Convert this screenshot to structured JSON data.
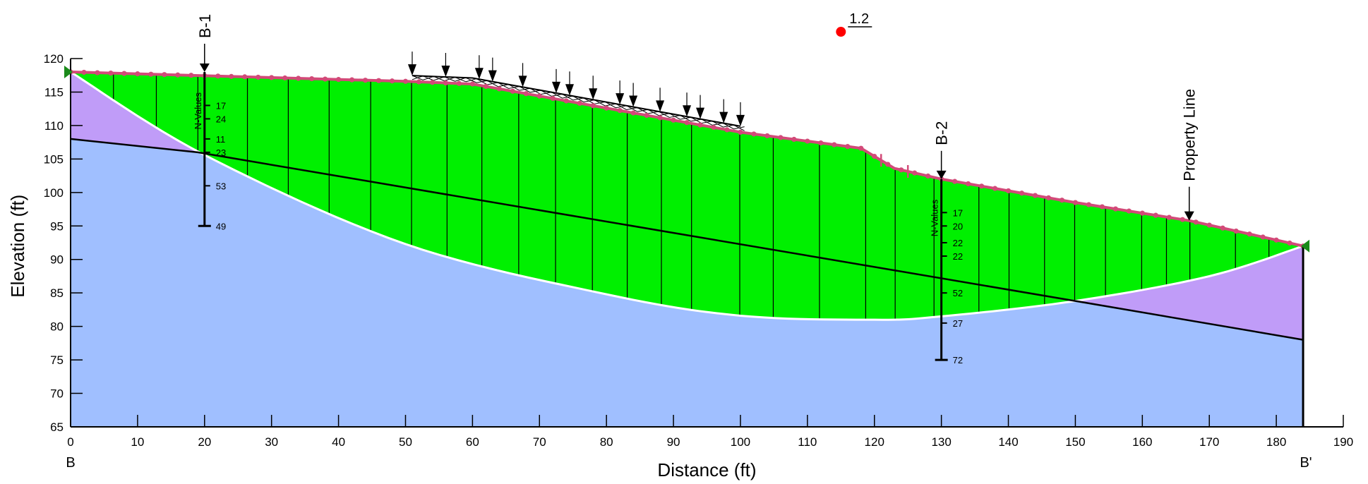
{
  "chart_data": {
    "type": "cross-section",
    "xlabel": "Distance (ft)",
    "ylabel": "Elevation (ft)",
    "xlim": [
      0,
      190
    ],
    "ylim": [
      65,
      120
    ],
    "x_ticks": [
      0,
      10,
      20,
      30,
      40,
      50,
      60,
      70,
      80,
      90,
      100,
      110,
      120,
      130,
      140,
      150,
      160,
      170,
      180,
      190
    ],
    "y_ticks": [
      65,
      70,
      75,
      80,
      85,
      90,
      95,
      100,
      105,
      110,
      115,
      120
    ],
    "section_start_label": "B",
    "section_end_label": "B'",
    "factor_of_safety": {
      "label": "1.2",
      "x": 115,
      "y": 124
    },
    "colors": {
      "lower_layer": "#a0bfff",
      "upper_layer": "#c09cf8",
      "slip_mass": "#00f000",
      "ground_line": "#d24a78",
      "fs_marker": "#ff0000",
      "end_marker": "#1a8a1a"
    },
    "ground_surface": [
      [
        0,
        118
      ],
      [
        50,
        116.6
      ],
      [
        60,
        116.2
      ],
      [
        100,
        109
      ],
      [
        118,
        106.6
      ],
      [
        123,
        103.6
      ],
      [
        130,
        102
      ],
      [
        150,
        98.5
      ],
      [
        167,
        95.8
      ],
      [
        184,
        92
      ]
    ],
    "layer_boundary": [
      [
        0,
        108
      ],
      [
        19,
        106
      ],
      [
        150,
        83.8
      ],
      [
        184,
        78
      ]
    ],
    "slip_surface": [
      [
        0,
        118
      ],
      [
        20,
        105.6
      ],
      [
        50,
        92.3
      ],
      [
        80,
        84.8
      ],
      [
        100,
        81.6
      ],
      [
        120,
        81
      ],
      [
        130,
        81.5
      ],
      [
        150,
        83.8
      ],
      [
        170,
        87.5
      ],
      [
        184,
        92
      ]
    ],
    "applied_load": {
      "x_start": 51,
      "x_end": 100,
      "elev_start": 117,
      "elev_end": 110
    },
    "borings": [
      {
        "name": "B-1",
        "x": 20,
        "top": 118,
        "bottom": 95,
        "n_label": "N-Values",
        "n_values": [
          {
            "elev": 113,
            "value": "17"
          },
          {
            "elev": 111,
            "value": "24"
          },
          {
            "elev": 108,
            "value": "11"
          },
          {
            "elev": 106,
            "value": "23"
          },
          {
            "elev": 101,
            "value": "53"
          },
          {
            "elev": 95,
            "value": "49"
          }
        ]
      },
      {
        "name": "B-2",
        "x": 130,
        "top": 102,
        "bottom": 75,
        "n_label": "N-Values",
        "n_values": [
          {
            "elev": 97,
            "value": "17"
          },
          {
            "elev": 95,
            "value": "20"
          },
          {
            "elev": 92.5,
            "value": "22"
          },
          {
            "elev": 90.5,
            "value": "22"
          },
          {
            "elev": 85,
            "value": "52"
          },
          {
            "elev": 80.5,
            "value": "27"
          },
          {
            "elev": 75,
            "value": "72"
          }
        ]
      }
    ],
    "property_line": {
      "label": "Property Line",
      "x": 167
    }
  }
}
